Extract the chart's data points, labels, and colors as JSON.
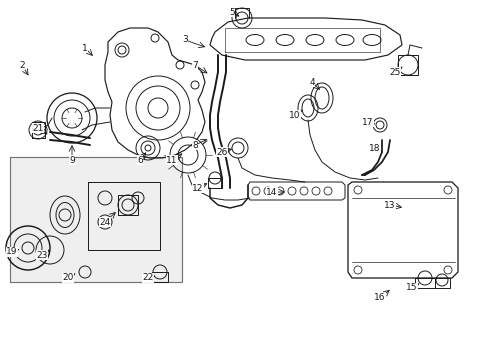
{
  "bg_color": "#ffffff",
  "lc": "#1a1a1a",
  "lw": 0.7,
  "figsize": [
    4.89,
    3.6
  ],
  "dpi": 100,
  "labels": [
    [
      1,
      0.85,
      3.05,
      0.98,
      3.12
    ],
    [
      2,
      0.22,
      2.88,
      0.3,
      2.95
    ],
    [
      3,
      1.92,
      3.18,
      2.05,
      3.08
    ],
    [
      4,
      3.2,
      2.75,
      3.28,
      2.62
    ],
    [
      5,
      2.4,
      3.42,
      2.5,
      3.32
    ],
    [
      6,
      1.45,
      2.02,
      1.55,
      2.1
    ],
    [
      7,
      2.08,
      2.95,
      2.0,
      2.85
    ],
    [
      8,
      2.05,
      2.18,
      2.12,
      2.28
    ],
    [
      9,
      0.75,
      2.02,
      0.8,
      2.1
    ],
    [
      10,
      3.05,
      2.38,
      3.1,
      2.48
    ],
    [
      11,
      1.78,
      1.95,
      1.88,
      2.02
    ],
    [
      12,
      2.12,
      1.72,
      2.22,
      1.82
    ],
    [
      13,
      3.98,
      1.5,
      4.08,
      1.58
    ],
    [
      14,
      2.82,
      1.65,
      2.92,
      1.72
    ],
    [
      15,
      4.12,
      0.75,
      4.2,
      0.82
    ],
    [
      16,
      3.82,
      0.62,
      3.9,
      0.72
    ],
    [
      17,
      3.75,
      2.28,
      3.82,
      2.38
    ],
    [
      18,
      3.85,
      2.08,
      3.92,
      2.18
    ],
    [
      19,
      0.12,
      1.35,
      0.22,
      1.42
    ],
    [
      20,
      0.72,
      0.78,
      0.82,
      0.88
    ],
    [
      21,
      0.48,
      2.28,
      0.58,
      2.35
    ],
    [
      22,
      1.58,
      0.82,
      1.68,
      0.92
    ],
    [
      23,
      0.55,
      1.05,
      0.65,
      1.12
    ],
    [
      24,
      1.08,
      1.32,
      1.18,
      1.42
    ],
    [
      25,
      4.05,
      2.78,
      4.12,
      2.88
    ],
    [
      26,
      2.38,
      2.05,
      2.48,
      2.12
    ]
  ]
}
